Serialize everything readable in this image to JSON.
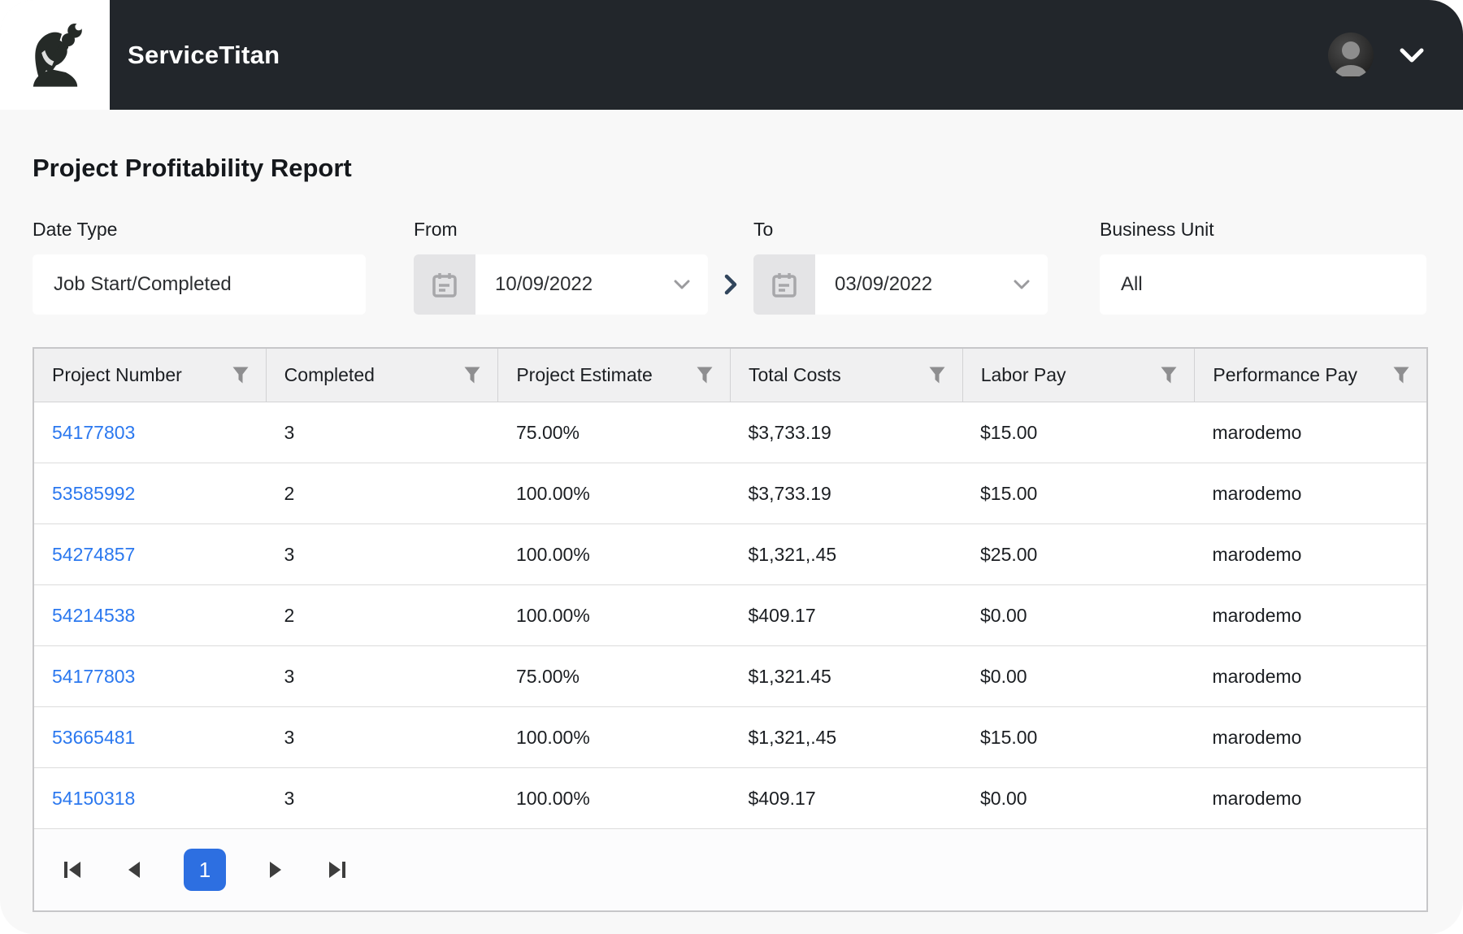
{
  "header": {
    "brand": "ServiceTitan"
  },
  "page": {
    "title": "Project Profitability Report"
  },
  "filters": {
    "date_type": {
      "label": "Date Type",
      "value": "Job Start/Completed"
    },
    "from": {
      "label": "From",
      "value": "10/09/2022"
    },
    "to": {
      "label": "To",
      "value": "03/09/2022"
    },
    "business_unit": {
      "label": "Business Unit",
      "value": "All"
    }
  },
  "table": {
    "columns": [
      "Project Number",
      "Completed",
      "Project Estimate",
      "Total Costs",
      "Labor Pay",
      "Performance Pay"
    ],
    "rows": [
      [
        "54177803",
        "3",
        "75.00%",
        "$3,733.19",
        "$15.00",
        "marodemo"
      ],
      [
        "53585992",
        "2",
        "100.00%",
        "$3,733.19",
        "$15.00",
        "marodemo"
      ],
      [
        "54274857",
        "3",
        "100.00%",
        "$1,321,.45",
        "$25.00",
        "marodemo"
      ],
      [
        "54214538",
        "2",
        "100.00%",
        "$409.17",
        "$0.00",
        "marodemo"
      ],
      [
        "54177803",
        "3",
        "75.00%",
        "$1,321.45",
        "$0.00",
        "marodemo"
      ],
      [
        "53665481",
        "3",
        "100.00%",
        "$1,321,.45",
        "$15.00",
        "marodemo"
      ],
      [
        "54150318",
        "3",
        "100.00%",
        "$409.17",
        "$0.00",
        "marodemo"
      ]
    ]
  },
  "pagination": {
    "current_page": "1"
  },
  "colors": {
    "header_bg": "#22262b",
    "page_bg": "#f8f8f8",
    "link_blue": "#2b78ef",
    "accent_blue": "#2d6fe1",
    "thead_bg": "#f0f0f1"
  }
}
